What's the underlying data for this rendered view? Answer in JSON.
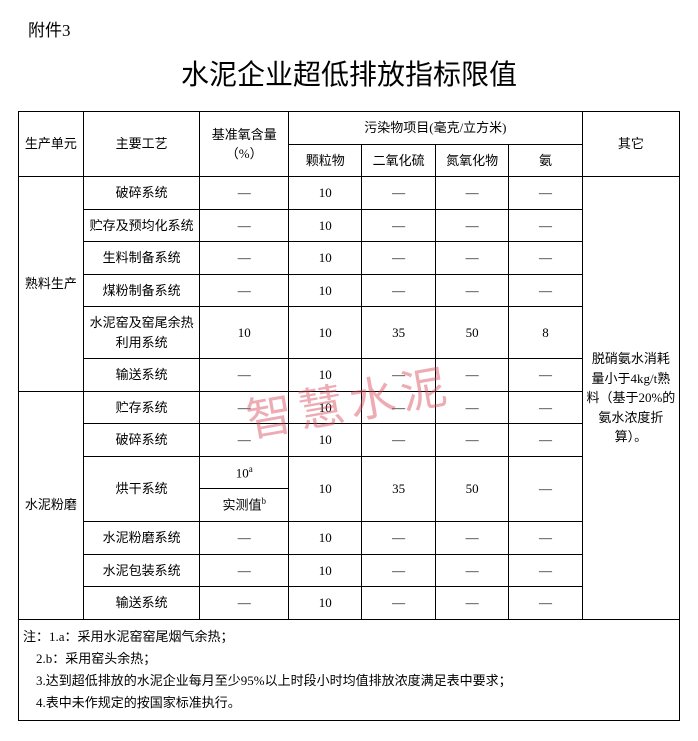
{
  "attachment_label": "附件3",
  "title": "水泥企业超低排放指标限值",
  "watermark": "智慧水泥",
  "table": {
    "headers": {
      "unit": "生产单元",
      "process": "主要工艺",
      "o2": "基准氧含量（%）",
      "pollutants_group": "污染物项目(毫克/立方米)",
      "pm": "颗粒物",
      "so2": "二氧化硫",
      "nox": "氮氧化物",
      "nh3": "氨",
      "other": "其它"
    },
    "units": {
      "clinker": "熟料生产",
      "cement": "水泥粉磨"
    },
    "rows": [
      {
        "process": "破碎系统",
        "o2": "—",
        "pm": "10",
        "so2": "—",
        "nox": "—",
        "nh3": "—"
      },
      {
        "process": "贮存及预均化系统",
        "o2": "—",
        "pm": "10",
        "so2": "—",
        "nox": "—",
        "nh3": "—"
      },
      {
        "process": "生料制备系统",
        "o2": "—",
        "pm": "10",
        "so2": "—",
        "nox": "—",
        "nh3": "—"
      },
      {
        "process": "煤粉制备系统",
        "o2": "—",
        "pm": "10",
        "so2": "—",
        "nox": "—",
        "nh3": "—"
      },
      {
        "process": "水泥窑及窑尾余热利用系统",
        "o2": "10",
        "pm": "10",
        "so2": "35",
        "nox": "50",
        "nh3": "8"
      },
      {
        "process": "输送系统",
        "o2": "—",
        "pm": "10",
        "so2": "—",
        "nox": "—",
        "nh3": "—"
      },
      {
        "process": "贮存系统",
        "o2": "—",
        "pm": "10",
        "so2": "—",
        "nox": "—",
        "nh3": "—"
      },
      {
        "process": "破碎系统",
        "o2": "—",
        "pm": "10",
        "so2": "—",
        "nox": "—",
        "nh3": "—"
      },
      {
        "process": "烘干系统",
        "o2_a": "10",
        "o2_a_sup": "a",
        "o2_b": "实测值",
        "o2_b_sup": "b",
        "pm": "10",
        "so2": "35",
        "nox": "50",
        "nh3": "—"
      },
      {
        "process": "水泥粉磨系统",
        "o2": "—",
        "pm": "10",
        "so2": "—",
        "nox": "—",
        "nh3": "—"
      },
      {
        "process": "水泥包装系统",
        "o2": "—",
        "pm": "10",
        "so2": "—",
        "nox": "—",
        "nh3": "—"
      },
      {
        "process": "输送系统",
        "o2": "—",
        "pm": "10",
        "so2": "—",
        "nox": "—",
        "nh3": "—"
      }
    ],
    "other_note": "脱硝氨水消耗量小于4kg/t熟料（基于20%的氨水浓度折算）。",
    "notes": {
      "prefix": "注：",
      "items": [
        "1.a：采用水泥窑窑尾烟气余热；",
        "2.b：采用窑头余热；",
        "3.达到超低排放的水泥企业每月至少95%以上时段小时均值排放浓度满足表中要求；",
        "4.表中未作规定的按国家标准执行。"
      ]
    }
  },
  "colors": {
    "text": "#000000",
    "background": "#ffffff",
    "border": "#000000",
    "watermark": "#d94a5a"
  }
}
